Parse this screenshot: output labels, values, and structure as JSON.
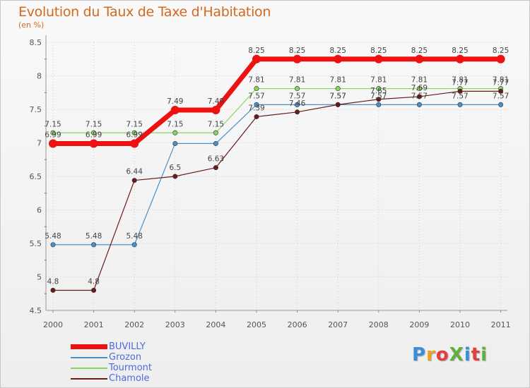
{
  "title": "Evolution du Taux de Taxe d'Habitation",
  "subtitle": "(en %)",
  "logo": "ProXiti",
  "colors": {
    "title": "#d2691e",
    "axis_text": "#555555",
    "grid": "#cfcfcf",
    "legend_text": "#4e6ae0"
  },
  "chart_data": {
    "type": "line",
    "title": "Evolution du Taux de Taxe d'Habitation",
    "ylabel": "(en %)",
    "xlabel": "",
    "x": [
      "2000",
      "2001",
      "2002",
      "2003",
      "2004",
      "2005",
      "2006",
      "2007",
      "2008",
      "2009",
      "2010",
      "2011"
    ],
    "ylim": [
      4.5,
      8.5
    ],
    "yticks": [
      "4.5",
      "5",
      "5.5",
      "6",
      "6.5",
      "7",
      "7.5",
      "8",
      "8.5"
    ],
    "grid": true,
    "series": [
      {
        "name": "BUVILLY",
        "color": "#ee1111",
        "width": 7,
        "marker": 6,
        "values": [
          6.99,
          6.99,
          6.99,
          7.49,
          7.49,
          8.25,
          8.25,
          8.25,
          8.25,
          8.25,
          8.25,
          8.25
        ],
        "labels": [
          "6.99",
          "6.99",
          "6.99",
          "7.49",
          "7.49",
          "8.25",
          "8.25",
          "8.25",
          "8.25",
          "8.25",
          "8.25",
          "8.25"
        ]
      },
      {
        "name": "Grozon",
        "color": "#4a90c8",
        "width": 1.2,
        "marker": 3.2,
        "values": [
          5.48,
          5.48,
          5.48,
          6.99,
          6.99,
          7.57,
          7.57,
          7.57,
          7.57,
          7.57,
          7.57,
          7.57
        ],
        "labels": [
          "5.48",
          "5.48",
          "5.48",
          "",
          "",
          "7.57",
          "7.57",
          "7.57",
          "7.57",
          "7.57",
          "7.57",
          "7.57"
        ]
      },
      {
        "name": "Tourmont",
        "color": "#88d660",
        "width": 1.2,
        "marker": 3.2,
        "values": [
          7.15,
          7.15,
          7.15,
          7.15,
          7.15,
          7.81,
          7.81,
          7.81,
          7.81,
          7.81,
          7.81,
          7.81
        ],
        "labels": [
          "7.15",
          "7.15",
          "7.15",
          "7.15",
          "7.15",
          "7.81",
          "7.81",
          "7.81",
          "7.81",
          "7.81",
          "7.81",
          "7.81"
        ]
      },
      {
        "name": "Chamole",
        "color": "#6b1a1a",
        "width": 1.2,
        "marker": 3.2,
        "values": [
          4.8,
          4.8,
          6.44,
          6.5,
          6.63,
          7.39,
          7.46,
          7.57,
          7.65,
          7.69,
          7.77,
          7.77
        ],
        "labels": [
          "4.8",
          "4.8",
          "6.44",
          "6.5",
          "6.63",
          "7.39",
          "7.46",
          "7.57",
          "7.65",
          "7.69",
          "7.77",
          "7.77"
        ]
      }
    ],
    "legend": "bottom-left"
  }
}
